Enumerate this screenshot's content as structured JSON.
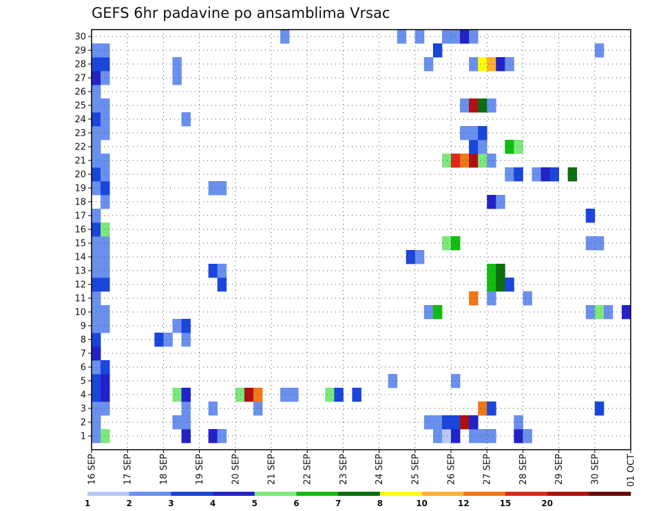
{
  "chart_data": {
    "type": "heatmap",
    "title": "GEFS 6hr padavine po ansamblima Vrsac",
    "xlabel": "",
    "ylabel": "",
    "x_tick_labels": [
      "16 SEP",
      "17 SEP",
      "18 SEP",
      "19 SEP",
      "20 SEP",
      "21 SEP",
      "22 SEP",
      "23 SEP",
      "24 SEP",
      "25 SEP",
      "26 SEP",
      "27 SEP",
      "28 SEP",
      "29 SEP",
      "30 SEP",
      "01 OCT"
    ],
    "y_tick_labels": [
      "1",
      "2",
      "3",
      "4",
      "5",
      "6",
      "7",
      "8",
      "9",
      "10",
      "11",
      "12",
      "13",
      "14",
      "15",
      "16",
      "17",
      "18",
      "19",
      "20",
      "21",
      "22",
      "23",
      "24",
      "25",
      "26",
      "27",
      "28",
      "29",
      "30"
    ],
    "x_range_steps": [
      0,
      60
    ],
    "y_range": [
      1,
      30
    ],
    "step_hours": 6,
    "grid": true,
    "legend_position": "bottom",
    "legend": {
      "levels": [
        "1",
        "2",
        "3",
        "4",
        "5",
        "6",
        "7",
        "8",
        "10",
        "12",
        "15",
        "20"
      ],
      "colors": [
        "#b8c8f5",
        "#6a90ee",
        "#1a46dc",
        "#2222c8",
        "#7ce87c",
        "#12bc12",
        "#0c6e0c",
        "#ffff00",
        "#ffb030",
        "#f07818",
        "#e02818",
        "#b01010",
        "#6a0a0a"
      ]
    },
    "cells": [
      {
        "m": 1,
        "s": [
          [
            0,
            1
          ],
          [
            1,
            4
          ],
          [
            10,
            3
          ],
          [
            13,
            3
          ],
          [
            14,
            1
          ],
          [
            38,
            1
          ],
          [
            39,
            0
          ],
          [
            40,
            3
          ],
          [
            42,
            1
          ],
          [
            43,
            1
          ],
          [
            44,
            1
          ],
          [
            47,
            3
          ],
          [
            48,
            1
          ]
        ]
      },
      {
        "m": 2,
        "s": [
          [
            0,
            1
          ],
          [
            9,
            1
          ],
          [
            10,
            1
          ],
          [
            37,
            1
          ],
          [
            38,
            1
          ],
          [
            39,
            2
          ],
          [
            40,
            2
          ],
          [
            41,
            11
          ],
          [
            42,
            3
          ],
          [
            47,
            1
          ]
        ]
      },
      {
        "m": 3,
        "s": [
          [
            0,
            1
          ],
          [
            1,
            1
          ],
          [
            10,
            1
          ],
          [
            13,
            1
          ],
          [
            18,
            1
          ],
          [
            43,
            9
          ],
          [
            44,
            2
          ],
          [
            56,
            2
          ]
        ]
      },
      {
        "m": 4,
        "s": [
          [
            0,
            2
          ],
          [
            1,
            3
          ],
          [
            9,
            4
          ],
          [
            10,
            3
          ],
          [
            16,
            4
          ],
          [
            17,
            11
          ],
          [
            18,
            9
          ],
          [
            21,
            1
          ],
          [
            22,
            1
          ],
          [
            26,
            4
          ],
          [
            27,
            2
          ],
          [
            29,
            2
          ]
        ]
      },
      {
        "m": 5,
        "s": [
          [
            0,
            2
          ],
          [
            1,
            3
          ],
          [
            33,
            1
          ],
          [
            40,
            1
          ]
        ]
      },
      {
        "m": 6,
        "s": [
          [
            0,
            1
          ],
          [
            1,
            2
          ]
        ]
      },
      {
        "m": 7,
        "s": [
          [
            0,
            3
          ]
        ]
      },
      {
        "m": 8,
        "s": [
          [
            0,
            2
          ],
          [
            7,
            2
          ],
          [
            8,
            1
          ],
          [
            10,
            1
          ]
        ]
      },
      {
        "m": 9,
        "s": [
          [
            0,
            1
          ],
          [
            1,
            1
          ],
          [
            9,
            1
          ],
          [
            10,
            2
          ]
        ]
      },
      {
        "m": 10,
        "s": [
          [
            0,
            1
          ],
          [
            1,
            1
          ],
          [
            37,
            1
          ],
          [
            38,
            5
          ],
          [
            55,
            1
          ],
          [
            56,
            4
          ],
          [
            57,
            1
          ],
          [
            59,
            3
          ]
        ]
      },
      {
        "m": 11,
        "s": [
          [
            0,
            1
          ],
          [
            42,
            9
          ],
          [
            44,
            1
          ],
          [
            48,
            1
          ]
        ]
      },
      {
        "m": 12,
        "s": [
          [
            0,
            2
          ],
          [
            1,
            2
          ],
          [
            14,
            2
          ],
          [
            44,
            5
          ],
          [
            45,
            6
          ],
          [
            46,
            2
          ]
        ]
      },
      {
        "m": 13,
        "s": [
          [
            0,
            1
          ],
          [
            1,
            1
          ],
          [
            13,
            2
          ],
          [
            14,
            1
          ],
          [
            44,
            5
          ],
          [
            45,
            6
          ]
        ]
      },
      {
        "m": 14,
        "s": [
          [
            0,
            1
          ],
          [
            1,
            1
          ],
          [
            35,
            2
          ],
          [
            36,
            1
          ]
        ]
      },
      {
        "m": 15,
        "s": [
          [
            0,
            1
          ],
          [
            1,
            1
          ],
          [
            39,
            4
          ],
          [
            40,
            5
          ],
          [
            55,
            1
          ],
          [
            56,
            1
          ]
        ]
      },
      {
        "m": 16,
        "s": [
          [
            0,
            2
          ],
          [
            1,
            4
          ]
        ]
      },
      {
        "m": 17,
        "s": [
          [
            0,
            1
          ],
          [
            55,
            2
          ]
        ]
      },
      {
        "m": 18,
        "s": [
          [
            1,
            1
          ],
          [
            44,
            3
          ],
          [
            45,
            1
          ]
        ]
      },
      {
        "m": 19,
        "s": [
          [
            0,
            1
          ],
          [
            1,
            2
          ],
          [
            13,
            1
          ],
          [
            14,
            1
          ]
        ]
      },
      {
        "m": 20,
        "s": [
          [
            0,
            2
          ],
          [
            1,
            1
          ],
          [
            46,
            1
          ],
          [
            47,
            2
          ],
          [
            49,
            1
          ],
          [
            50,
            3
          ],
          [
            51,
            2
          ],
          [
            53,
            6
          ]
        ]
      },
      {
        "m": 21,
        "s": [
          [
            0,
            1
          ],
          [
            1,
            1
          ],
          [
            39,
            4
          ],
          [
            40,
            10
          ],
          [
            41,
            9
          ],
          [
            42,
            11
          ],
          [
            43,
            4
          ],
          [
            44,
            1
          ]
        ]
      },
      {
        "m": 22,
        "s": [
          [
            0,
            1
          ],
          [
            42,
            2
          ],
          [
            43,
            1
          ],
          [
            46,
            5
          ],
          [
            47,
            4
          ]
        ]
      },
      {
        "m": 23,
        "s": [
          [
            0,
            1
          ],
          [
            1,
            1
          ],
          [
            41,
            1
          ],
          [
            42,
            1
          ],
          [
            43,
            2
          ]
        ]
      },
      {
        "m": 24,
        "s": [
          [
            0,
            2
          ],
          [
            1,
            1
          ],
          [
            10,
            1
          ]
        ]
      },
      {
        "m": 25,
        "s": [
          [
            0,
            1
          ],
          [
            1,
            1
          ],
          [
            41,
            1
          ],
          [
            42,
            11
          ],
          [
            43,
            6
          ],
          [
            44,
            1
          ]
        ]
      },
      {
        "m": 26,
        "s": [
          [
            0,
            1
          ]
        ]
      },
      {
        "m": 27,
        "s": [
          [
            0,
            3
          ],
          [
            1,
            1
          ],
          [
            9,
            1
          ]
        ]
      },
      {
        "m": 28,
        "s": [
          [
            0,
            2
          ],
          [
            1,
            2
          ],
          [
            9,
            1
          ],
          [
            37,
            1
          ],
          [
            42,
            1
          ],
          [
            43,
            7
          ],
          [
            44,
            8
          ],
          [
            45,
            3
          ],
          [
            46,
            1
          ]
        ]
      },
      {
        "m": 29,
        "s": [
          [
            0,
            1
          ],
          [
            1,
            1
          ],
          [
            38,
            2
          ],
          [
            56,
            1
          ]
        ]
      },
      {
        "m": 30,
        "s": [
          [
            21,
            1
          ],
          [
            34,
            1
          ],
          [
            36,
            1
          ],
          [
            39,
            1
          ],
          [
            40,
            1
          ],
          [
            41,
            3
          ],
          [
            42,
            1
          ]
        ]
      }
    ]
  }
}
